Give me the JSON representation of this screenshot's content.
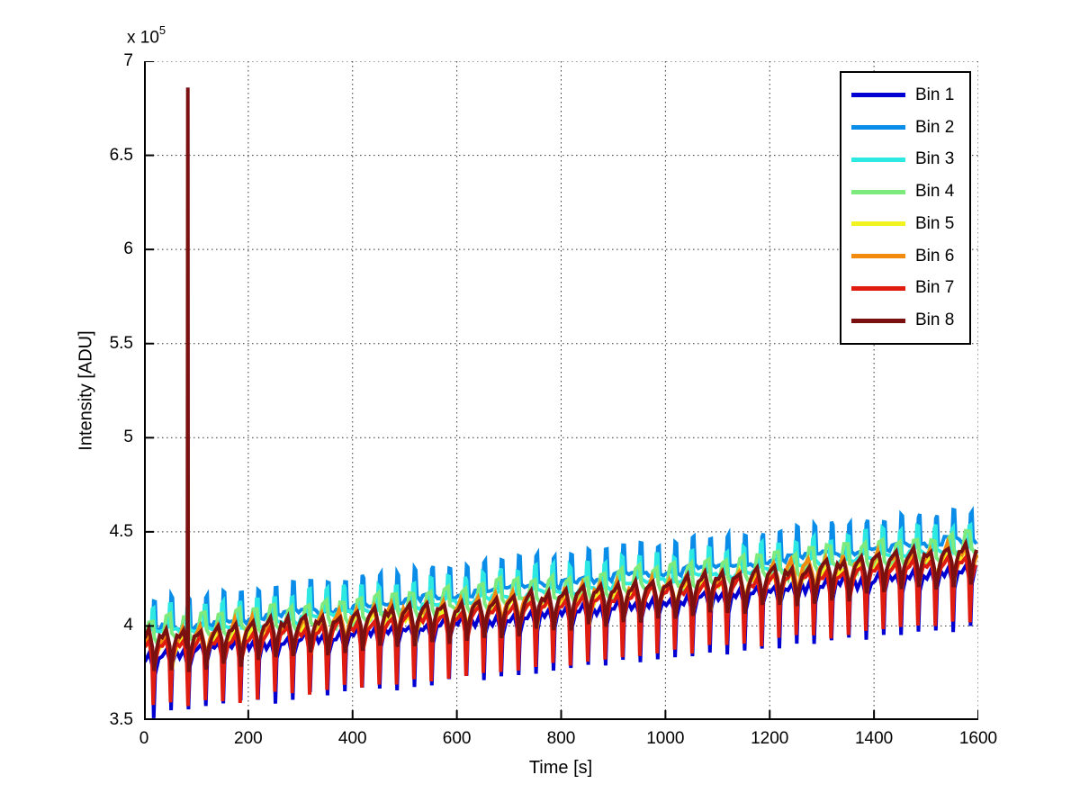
{
  "axes": {
    "xlabel": "Time [s]",
    "ylabel": "Intensity [ADU]",
    "offset_label": "x 10",
    "offset_exponent": "5",
    "xtick_labels": [
      "0",
      "200",
      "400",
      "600",
      "800",
      "1000",
      "1200",
      "1400",
      "1600"
    ],
    "ytick_labels": [
      "3.5",
      "4",
      "4.5",
      "5",
      "5.5",
      "6",
      "6.5",
      "7"
    ]
  },
  "chart_data": {
    "type": "line",
    "title": "",
    "xlabel": "Time [s]",
    "ylabel": "Intensity [ADU]",
    "y_unit_scale": "1e5 ADU",
    "xlim": [
      0,
      1600
    ],
    "ylim_e5": [
      3.5,
      7
    ],
    "xticks": [
      0,
      200,
      400,
      600,
      800,
      1000,
      1200,
      1400,
      1600
    ],
    "yticks_e5": [
      3.5,
      4,
      4.5,
      5,
      5.5,
      6,
      6.5,
      7
    ],
    "grid": "dotted",
    "legend_position": "northeast",
    "oscillation_period_s": 33.33,
    "description": "Eight noisy sawtooth intensity traces rising roughly linearly with time; Bin 8 shows a single tall spike near t=84 s.",
    "series": [
      {
        "name": "Bin 1",
        "color": "#0000d2",
        "start_e5": 3.8,
        "end_e5": 4.27,
        "pattern": [
          [
            0.05,
            0.02
          ],
          [
            0.3,
            0.06
          ],
          [
            0.5,
            -0.02
          ],
          [
            0.56,
            -0.27
          ],
          [
            0.64,
            -0.04
          ],
          [
            0.85,
            0.04
          ]
        ]
      },
      {
        "name": "Bin 2",
        "color": "#0a8de8",
        "start_e5": 4.0,
        "end_e5": 4.49,
        "pattern": [
          [
            0.05,
            -0.02
          ],
          [
            0.5,
            -0.01
          ],
          [
            0.56,
            0.13
          ],
          [
            0.64,
            0.13
          ],
          [
            0.7,
            -0.02
          ],
          [
            0.9,
            -0.03
          ]
        ]
      },
      {
        "name": "Bin 3",
        "color": "#2de9e1",
        "start_e5": 3.97,
        "end_e5": 4.44,
        "pattern": [
          [
            0.05,
            -0.03
          ],
          [
            0.42,
            -0.01
          ],
          [
            0.48,
            0.11
          ],
          [
            0.56,
            0.11
          ],
          [
            0.62,
            -0.02
          ],
          [
            0.9,
            -0.03
          ]
        ]
      },
      {
        "name": "Bin 4",
        "color": "#7dea7d",
        "start_e5": 3.94,
        "end_e5": 4.41,
        "pattern": [
          [
            0.05,
            -0.04
          ],
          [
            0.28,
            0.08
          ],
          [
            0.5,
            0.09
          ],
          [
            0.6,
            -0.01
          ],
          [
            0.75,
            -0.03
          ],
          [
            0.9,
            -0.04
          ]
        ]
      },
      {
        "name": "Bin 5",
        "color": "#f2f21e",
        "start_e5": 3.86,
        "end_e5": 4.33,
        "pattern": [
          [
            0.05,
            0.04
          ],
          [
            0.25,
            0.07
          ],
          [
            0.45,
            -0.01
          ],
          [
            0.58,
            -0.11
          ],
          [
            0.7,
            -0.02
          ],
          [
            0.9,
            0.03
          ]
        ]
      },
      {
        "name": "Bin 6",
        "color": "#f28a0e",
        "start_e5": 3.88,
        "end_e5": 4.35,
        "pattern": [
          [
            0.05,
            0.05
          ],
          [
            0.22,
            0.09
          ],
          [
            0.45,
            0.0
          ],
          [
            0.6,
            -0.09
          ],
          [
            0.78,
            0.0
          ],
          [
            0.92,
            0.04
          ]
        ]
      },
      {
        "name": "Bin 7",
        "color": "#e01b10",
        "start_e5": 3.83,
        "end_e5": 4.3,
        "pattern": [
          [
            0.05,
            0.05
          ],
          [
            0.3,
            0.08
          ],
          [
            0.46,
            -0.03
          ],
          [
            0.53,
            -0.27
          ],
          [
            0.62,
            -0.05
          ],
          [
            0.85,
            0.04
          ]
        ]
      },
      {
        "name": "Bin 8",
        "color": "#7a1010",
        "start_e5": 3.87,
        "end_e5": 4.34,
        "pattern": [
          [
            0.05,
            0.06
          ],
          [
            0.28,
            0.09
          ],
          [
            0.48,
            0.0
          ],
          [
            0.58,
            -0.12
          ],
          [
            0.72,
            -0.01
          ],
          [
            0.9,
            0.05
          ]
        ],
        "spike": {
          "time_s": 84,
          "peak_e5": 6.86
        }
      }
    ]
  }
}
